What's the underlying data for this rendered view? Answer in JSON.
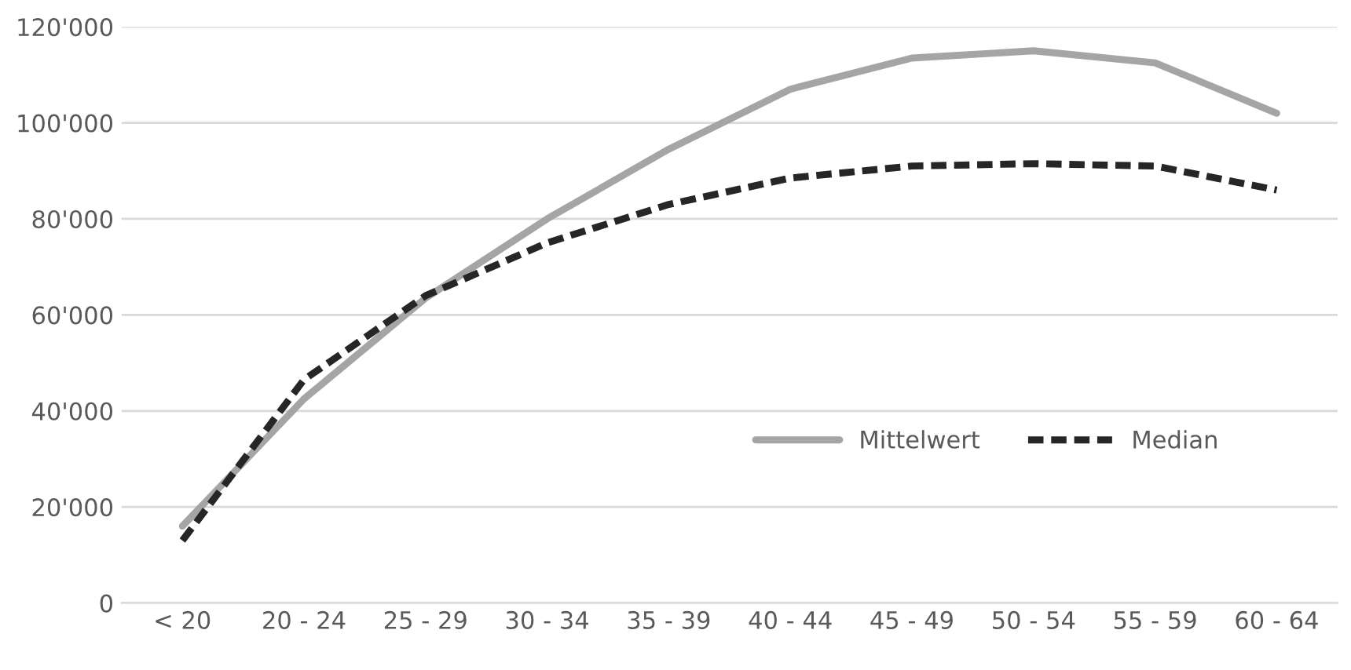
{
  "chart_data": {
    "type": "line",
    "categories": [
      "< 20",
      "20 - 24",
      "25 - 29",
      "30 - 34",
      "35 - 39",
      "40 - 44",
      "45 - 49",
      "50 - 54",
      "55 - 59",
      "60 - 64"
    ],
    "series": [
      {
        "name": "Mittelwert",
        "color": "#a5a5a5",
        "line_style": "solid",
        "values": [
          16000,
          42500,
          63500,
          80000,
          94500,
          107000,
          113500,
          115000,
          112500,
          102000
        ]
      },
      {
        "name": "Median",
        "color": "#262626",
        "line_style": "dashed",
        "values": [
          13000,
          46500,
          64000,
          75000,
          83000,
          88500,
          91000,
          91500,
          91000,
          86000
        ]
      }
    ],
    "ylim": [
      0,
      120000
    ],
    "yticks": [
      {
        "value": 0,
        "label": "0"
      },
      {
        "value": 20000,
        "label": "20'000"
      },
      {
        "value": 40000,
        "label": "40'000"
      },
      {
        "value": 60000,
        "label": "60'000"
      },
      {
        "value": 80000,
        "label": "80'000"
      },
      {
        "value": 100000,
        "label": "100'000"
      },
      {
        "value": 120000,
        "label": "120'000"
      }
    ],
    "grid": "y",
    "legend": "center right",
    "marker": "none"
  }
}
